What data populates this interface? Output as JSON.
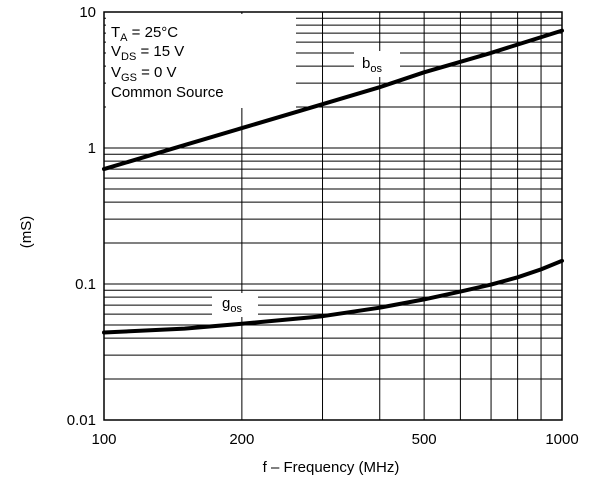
{
  "chart_data": {
    "type": "line",
    "title": "",
    "xlabel": "f – Frequency (MHz)",
    "ylabel": "(mS)",
    "xscale": "log",
    "yscale": "log",
    "xlim": [
      100,
      1000
    ],
    "ylim": [
      0.01,
      10
    ],
    "grid": true,
    "x_ticks": [
      {
        "value": 100,
        "label": "100"
      },
      {
        "value": 200,
        "label": "200"
      },
      {
        "value": 500,
        "label": "500"
      },
      {
        "value": 1000,
        "label": "1000"
      }
    ],
    "y_ticks": [
      {
        "value": 0.01,
        "label": "0.01"
      },
      {
        "value": 0.1,
        "label": "0.1"
      },
      {
        "value": 1,
        "label": "1"
      },
      {
        "value": 10,
        "label": "10"
      }
    ],
    "conditions": {
      "ta": {
        "main": "T",
        "sub": "A",
        "rest": " = 25°C"
      },
      "vds": {
        "main": "V",
        "sub": "DS",
        "rest": " = 15 V"
      },
      "vgs": {
        "main": "V",
        "sub": "GS",
        "rest": " = 0 V"
      },
      "mode": "Common Source"
    },
    "series": [
      {
        "name": "bos",
        "label_main": "b",
        "label_sub": "os",
        "x": [
          100,
          150,
          200,
          300,
          400,
          500,
          700,
          1000
        ],
        "y": [
          0.7,
          1.05,
          1.4,
          2.1,
          2.8,
          3.6,
          5.0,
          7.3
        ]
      },
      {
        "name": "gos",
        "label_main": "g",
        "label_sub": "os",
        "x": [
          100,
          150,
          200,
          300,
          400,
          500,
          600,
          700,
          800,
          900,
          1000
        ],
        "y": [
          0.044,
          0.047,
          0.051,
          0.058,
          0.067,
          0.077,
          0.088,
          0.099,
          0.112,
          0.128,
          0.148
        ]
      }
    ]
  }
}
